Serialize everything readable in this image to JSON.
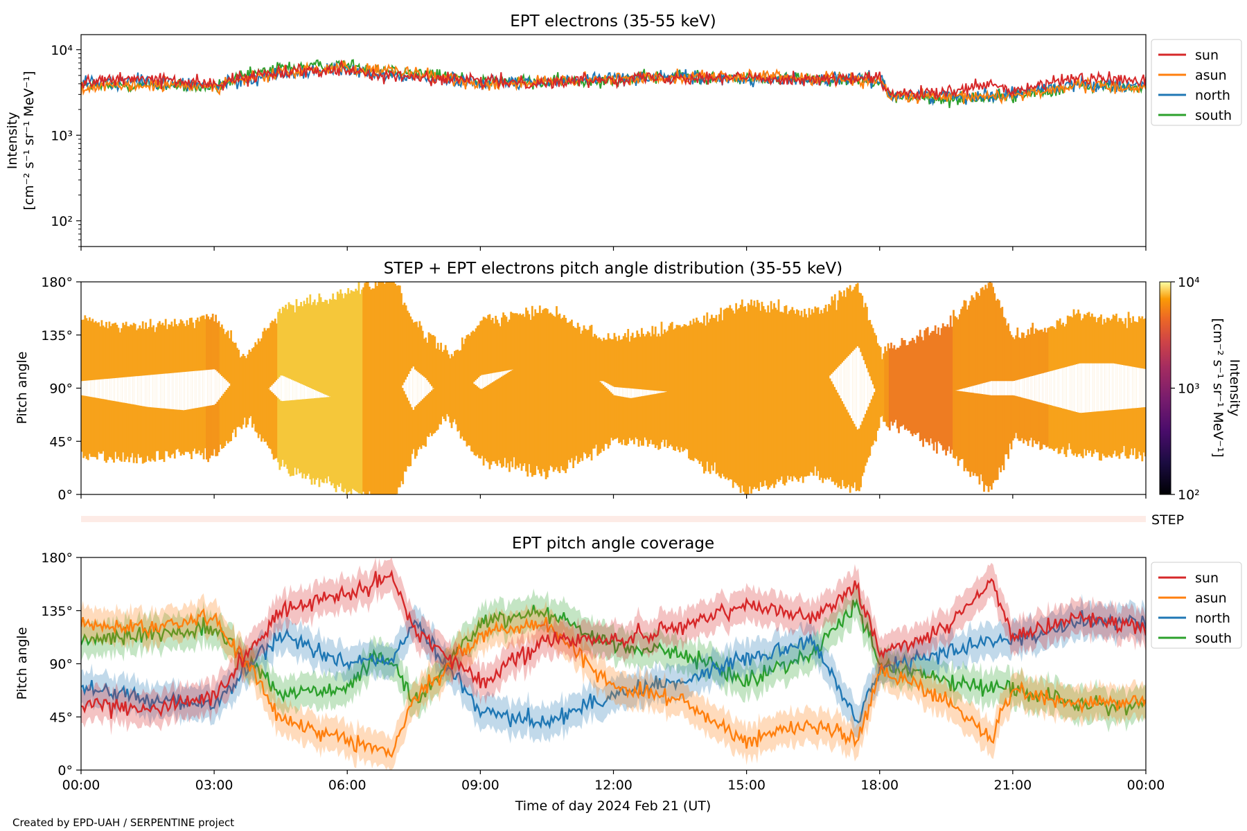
{
  "chart_data": [
    {
      "type": "line",
      "title": "EPT electrons (35-55 keV)",
      "ylabel_line1": "Intensity",
      "ylabel_line2": "[cm⁻² s⁻¹ sr⁻¹ MeV⁻¹]",
      "yscale": "log",
      "ylim": [
        50,
        15000
      ],
      "yticks": [
        {
          "value": 100,
          "label": "10²"
        },
        {
          "value": 1000,
          "label": "10³"
        },
        {
          "value": 10000,
          "label": "10⁴"
        }
      ],
      "x_hours": [
        0,
        1.5,
        3,
        4.5,
        6,
        6.5,
        7,
        9,
        10.5,
        12,
        13.5,
        15,
        16.5,
        18,
        18.2,
        19.5,
        20.5,
        21,
        22.5,
        24
      ],
      "series": [
        {
          "name": "sun",
          "color": "#d62728",
          "values": [
            4200,
            4600,
            3900,
            5600,
            6000,
            5200,
            4900,
            4300,
            4100,
            4600,
            4800,
            4700,
            4500,
            4600,
            3000,
            3100,
            3900,
            3200,
            4700,
            4300
          ]
        },
        {
          "name": "asun",
          "color": "#ff7f0e",
          "values": [
            3600,
            3800,
            3800,
            5300,
            6300,
            5600,
            5600,
            4000,
            4200,
            4500,
            4900,
            4800,
            4700,
            4400,
            2900,
            2700,
            2900,
            2900,
            3800,
            3500
          ]
        },
        {
          "name": "north",
          "color": "#1f77b4",
          "values": [
            4100,
            4300,
            3700,
            5200,
            5900,
            5000,
            5000,
            4200,
            4200,
            4700,
            4800,
            4500,
            4500,
            4500,
            3000,
            2900,
            2900,
            3100,
            4000,
            3800
          ]
        },
        {
          "name": "south",
          "color": "#2ca02c",
          "values": [
            3700,
            3900,
            3600,
            6200,
            6600,
            6000,
            5800,
            4300,
            4100,
            4500,
            4900,
            4600,
            4600,
            4500,
            2900,
            2600,
            2800,
            2900,
            3700,
            3600
          ]
        }
      ]
    },
    {
      "type": "heatmap",
      "title": "STEP + EPT electrons pitch angle distribution (35-55 keV)",
      "ylabel": "Pitch angle",
      "ylim": [
        0,
        180
      ],
      "yticks": [
        "0°",
        "45°",
        "90°",
        "135°",
        "180°"
      ],
      "colorbar": {
        "label_line1": "Intensity",
        "label_line2": "[cm⁻² s⁻¹ sr⁻¹ MeV⁻¹]",
        "min": 100,
        "max": 10000,
        "scale": "log",
        "ticks": [
          "10²",
          "10³",
          "10⁴"
        ]
      },
      "step_label": "STEP"
    },
    {
      "type": "line",
      "title": "EPT pitch angle coverage",
      "ylabel": "Pitch angle",
      "ylim": [
        0,
        180
      ],
      "yticks": [
        "0°",
        "45°",
        "90°",
        "135°",
        "180°"
      ],
      "x_hours": [
        0,
        1.5,
        3,
        4.5,
        6,
        6.5,
        7,
        7.5,
        9,
        10.5,
        12,
        13.5,
        15,
        16.5,
        17.5,
        18,
        19.5,
        20.5,
        21,
        22.5,
        24
      ],
      "series": [
        {
          "name": "sun",
          "color": "#d62728",
          "values": [
            55,
            52,
            62,
            135,
            150,
            155,
            165,
            120,
            75,
            110,
            110,
            120,
            140,
            130,
            155,
            100,
            120,
            160,
            110,
            130,
            120
          ]
        },
        {
          "name": "asun",
          "color": "#ff7f0e",
          "values": [
            125,
            120,
            130,
            45,
            25,
            20,
            15,
            60,
            115,
            125,
            70,
            60,
            25,
            40,
            25,
            85,
            60,
            25,
            70,
            55,
            60
          ]
        },
        {
          "name": "north",
          "color": "#1f77b4",
          "values": [
            70,
            60,
            55,
            115,
            90,
            95,
            90,
            125,
            50,
            40,
            65,
            75,
            95,
            110,
            40,
            85,
            100,
            110,
            110,
            125,
            125
          ]
        },
        {
          "name": "south",
          "color": "#2ca02c",
          "values": [
            110,
            115,
            120,
            65,
            70,
            90,
            95,
            55,
            125,
            135,
            105,
            100,
            75,
            100,
            140,
            90,
            75,
            70,
            70,
            55,
            55
          ]
        }
      ]
    }
  ],
  "xaxis": {
    "ticks": [
      "00:00",
      "03:00",
      "06:00",
      "09:00",
      "12:00",
      "15:00",
      "18:00",
      "21:00",
      "00:00"
    ],
    "label": "Time of day 2024 Feb 21 (UT)"
  },
  "legend": [
    "sun",
    "asun",
    "north",
    "south"
  ],
  "credit": "Created by EPD-UAH / SERPENTINE project"
}
